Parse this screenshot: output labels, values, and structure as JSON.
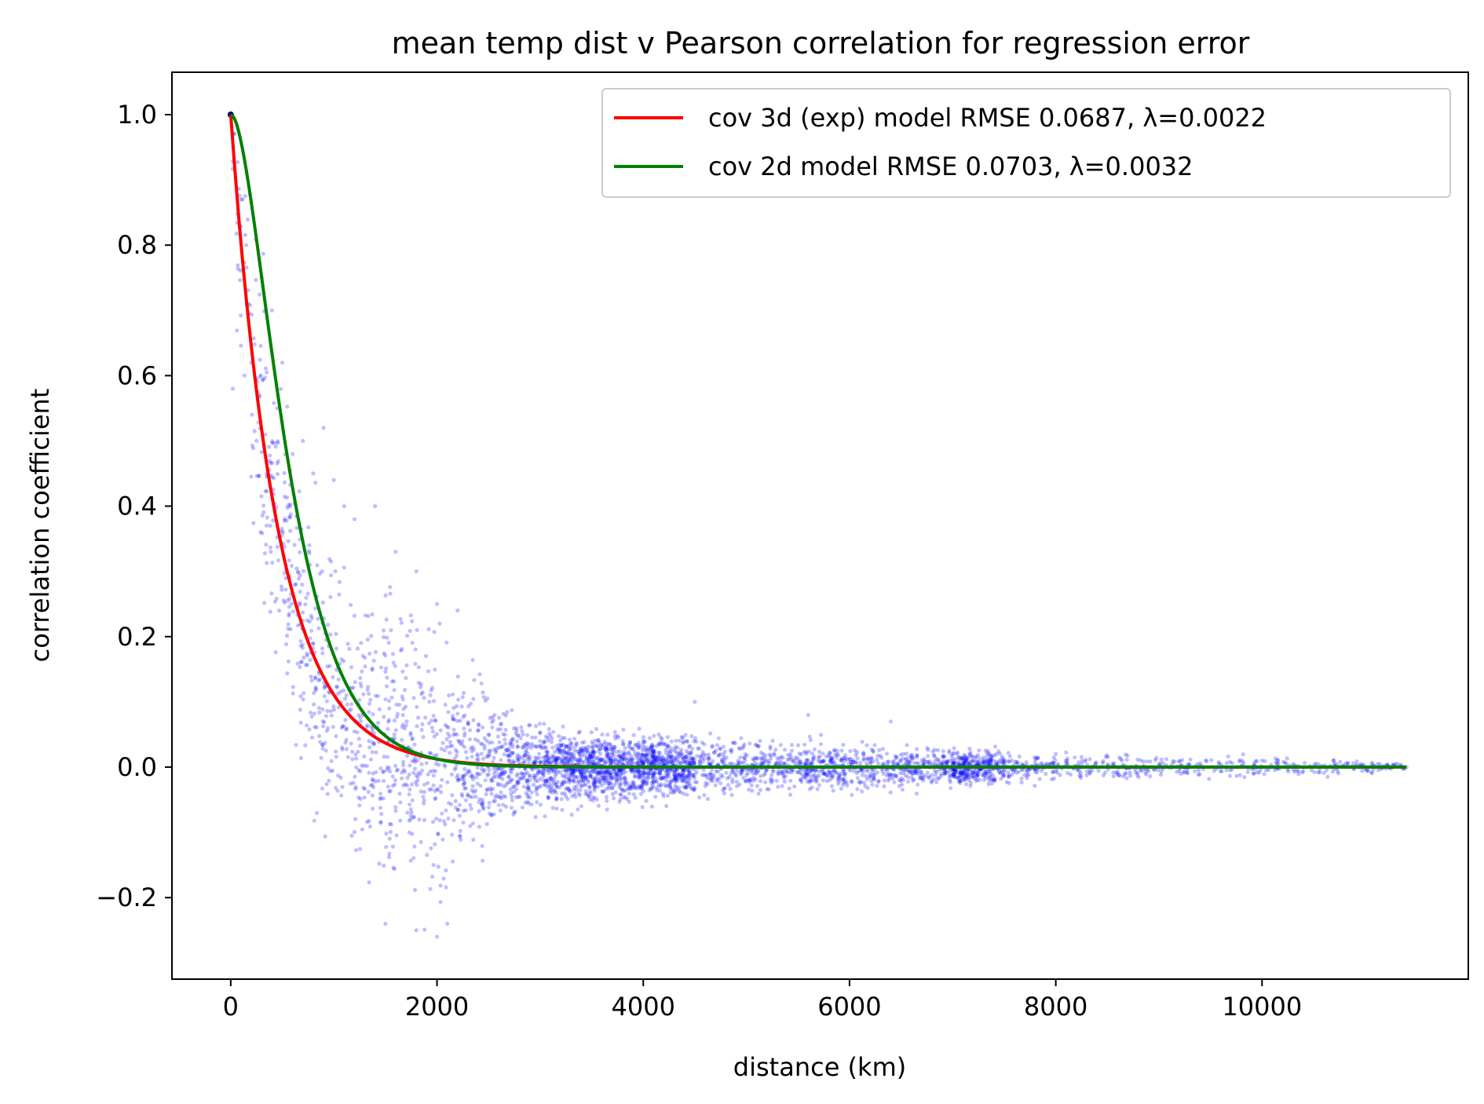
{
  "chart_data": {
    "type": "scatter",
    "title": "mean temp dist v Pearson correlation for regression error",
    "xlabel": "distance (km)",
    "ylabel": "correlation coefficient",
    "xlim": [
      -570,
      12000
    ],
    "ylim": [
      -0.325,
      1.065
    ],
    "xticks": [
      0,
      2000,
      4000,
      6000,
      8000,
      10000
    ],
    "xtick_labels": [
      "0",
      "2000",
      "4000",
      "6000",
      "8000",
      "10000"
    ],
    "yticks": [
      -0.2,
      0.0,
      0.2,
      0.4,
      0.6,
      0.8,
      1.0
    ],
    "ytick_labels": [
      "−0.2",
      "0.0",
      "0.2",
      "0.4",
      "0.6",
      "0.8",
      "1.0"
    ],
    "grid": false,
    "legend_position": "top-right",
    "scatter": {
      "color": "#0000ff",
      "opacity": 0.25,
      "description_points": [
        [
          0,
          1.0
        ],
        [
          20,
          0.58
        ],
        [
          100,
          0.87
        ],
        [
          150,
          0.8
        ],
        [
          200,
          0.62
        ],
        [
          250,
          0.5
        ],
        [
          300,
          0.75
        ],
        [
          350,
          0.45
        ],
        [
          400,
          0.7
        ],
        [
          450,
          0.55
        ],
        [
          500,
          0.62
        ],
        [
          600,
          0.48
        ],
        [
          700,
          0.5
        ],
        [
          800,
          0.45
        ],
        [
          900,
          0.52
        ],
        [
          1000,
          0.44
        ],
        [
          1100,
          0.4
        ],
        [
          1200,
          0.38
        ],
        [
          1400,
          0.4
        ],
        [
          1600,
          0.33
        ],
        [
          1800,
          0.3
        ],
        [
          2000,
          0.25
        ],
        [
          2200,
          0.24
        ],
        [
          1500,
          -0.24
        ],
        [
          1800,
          -0.25
        ],
        [
          2000,
          -0.26
        ],
        [
          2100,
          -0.24
        ],
        [
          2500,
          0.05
        ],
        [
          3000,
          0.04
        ],
        [
          4000,
          0.04
        ],
        [
          4500,
          0.1
        ],
        [
          5600,
          0.08
        ],
        [
          6400,
          0.07
        ],
        [
          8000,
          0.02
        ],
        [
          10000,
          0.01
        ],
        [
          11400,
          0.0
        ]
      ],
      "envelope": {
        "x": [
          0,
          200,
          400,
          600,
          800,
          1000,
          1200,
          1400,
          1600,
          1800,
          2000,
          2200,
          2400,
          2600,
          2800,
          3000,
          3500,
          4000,
          5000,
          6000,
          7000,
          8000,
          9000,
          10000,
          11400
        ],
        "upper": [
          1.0,
          0.88,
          0.75,
          0.62,
          0.52,
          0.46,
          0.4,
          0.38,
          0.36,
          0.32,
          0.26,
          0.22,
          0.15,
          0.1,
          0.08,
          0.07,
          0.06,
          0.06,
          0.05,
          0.05,
          0.04,
          0.03,
          0.025,
          0.02,
          0.01
        ],
        "lower": [
          0.58,
          0.1,
          0.08,
          0.06,
          -0.1,
          -0.12,
          -0.16,
          -0.22,
          -0.24,
          -0.25,
          -0.26,
          -0.22,
          -0.18,
          -0.13,
          -0.11,
          -0.1,
          -0.09,
          -0.08,
          -0.06,
          -0.05,
          -0.04,
          -0.03,
          -0.025,
          -0.02,
          -0.01
        ]
      }
    },
    "series": [
      {
        "name": "cov 3d (exp) model RMSE 0.0687, λ=0.0022",
        "color": "#ff0000",
        "model": "exp",
        "lambda": 0.0022,
        "x_range": [
          0,
          11400
        ]
      },
      {
        "name": "cov 2d model RMSE 0.0703, λ=0.0032",
        "color": "#008000",
        "model": "2d",
        "lambda": 0.0032,
        "x_range": [
          0,
          11400
        ]
      }
    ]
  }
}
